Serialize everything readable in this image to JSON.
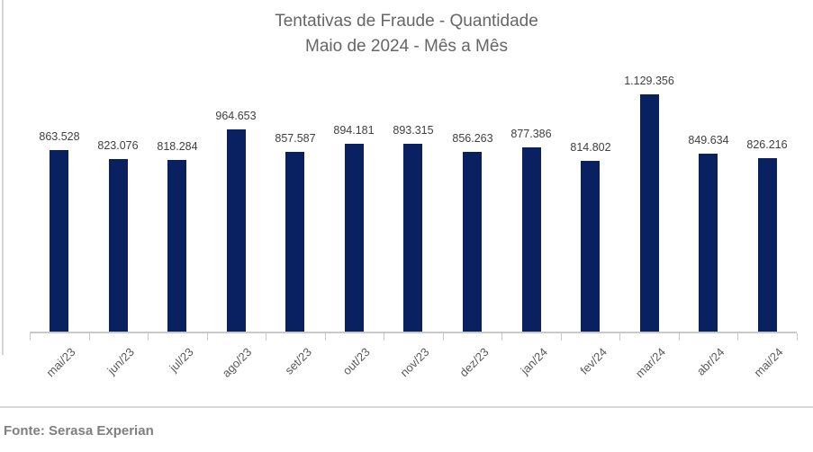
{
  "title": {
    "line1": "Tentativas de Fraude - Quantidade",
    "line2": "Maio de 2024 - Mês a Mês"
  },
  "source": "Fonte: Serasa Experian",
  "colors": {
    "bar": "#0a2161",
    "axis": "#c9c9c9",
    "title_text": "#666666",
    "value_label_text": "#404040",
    "tick_label_text": "#595959",
    "source_text": "#7f7f7f",
    "divider": "#d9d9d9"
  },
  "chart_data": {
    "type": "bar",
    "title": "Tentativas de Fraude - Quantidade Maio de 2024 - Mês a Mês",
    "categories": [
      "mai/23",
      "jun/23",
      "jul/23",
      "ago/23",
      "set/23",
      "out/23",
      "nov/23",
      "dez/23",
      "jan/24",
      "fev/24",
      "mar/24",
      "abr/24",
      "mai/24"
    ],
    "values": [
      863528,
      823076,
      818284,
      964653,
      857587,
      894181,
      893315,
      856263,
      877386,
      814802,
      1129356,
      849634,
      826216
    ],
    "value_labels": [
      "863.528",
      "823.076",
      "818.284",
      "964.653",
      "857.587",
      "894.181",
      "893.315",
      "856.263",
      "877.386",
      "814.802",
      "1.129.356",
      "849.634",
      "826.216"
    ],
    "xlabel": "",
    "ylabel": "",
    "ylim": [
      0,
      1129356
    ],
    "grid": false,
    "legend": false,
    "data_labels": true
  }
}
